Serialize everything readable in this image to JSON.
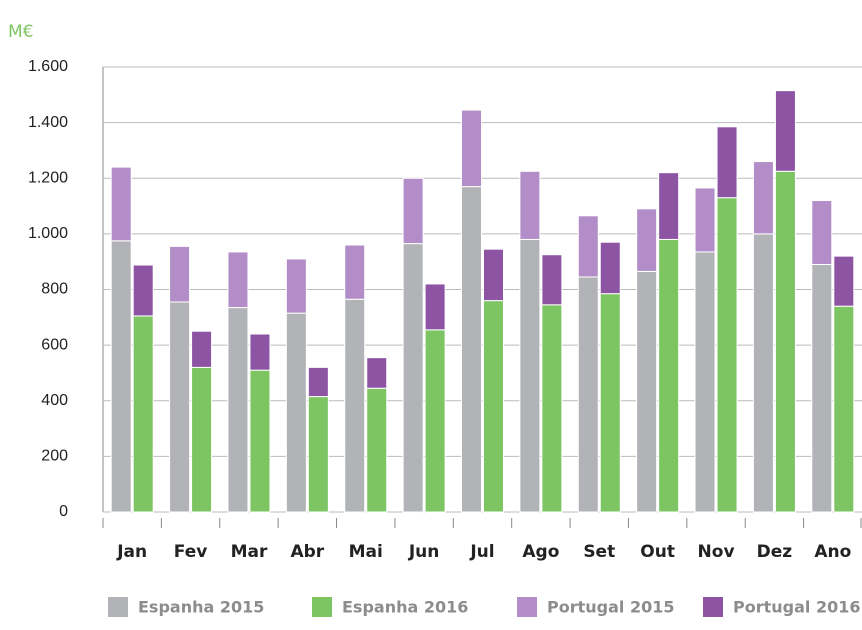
{
  "chart_data": {
    "type": "stacked-grouped-bar",
    "unit_label": "M€",
    "categories": [
      "Jan",
      "Fev",
      "Mar",
      "Abr",
      "Mai",
      "Jun",
      "Jul",
      "Ago",
      "Set",
      "Out",
      "Nov",
      "Dez",
      "Ano"
    ],
    "series": [
      {
        "name": "Espanha 2015",
        "color": "#b1b3b6",
        "stack": 0,
        "values": [
          975,
          755,
          735,
          715,
          765,
          965,
          1170,
          980,
          845,
          865,
          935,
          1000,
          890
        ]
      },
      {
        "name": "Espanha 2016",
        "color": "#7dc462",
        "stack": 1,
        "values": [
          705,
          520,
          510,
          415,
          445,
          655,
          760,
          745,
          785,
          980,
          1130,
          1225,
          740
        ]
      },
      {
        "name": "Portugal 2015",
        "color": "#b38dc7",
        "stack": 0,
        "values": [
          265,
          200,
          200,
          195,
          195,
          235,
          275,
          245,
          220,
          225,
          230,
          260,
          230
        ]
      },
      {
        "name": "Portugal 2016",
        "color": "#8e54a4",
        "stack": 1,
        "values": [
          183,
          130,
          130,
          105,
          110,
          165,
          185,
          180,
          185,
          240,
          255,
          290,
          180
        ]
      }
    ],
    "ylim": [
      0,
      1600
    ],
    "yticks": [
      0,
      200,
      400,
      600,
      800,
      {
        "value": 1000,
        "label": "1.000"
      },
      {
        "value": 1200,
        "label": "1.200"
      },
      {
        "value": 1400,
        "label": "1.400"
      },
      {
        "value": 1600,
        "label": "1.600"
      }
    ],
    "grid": true
  }
}
